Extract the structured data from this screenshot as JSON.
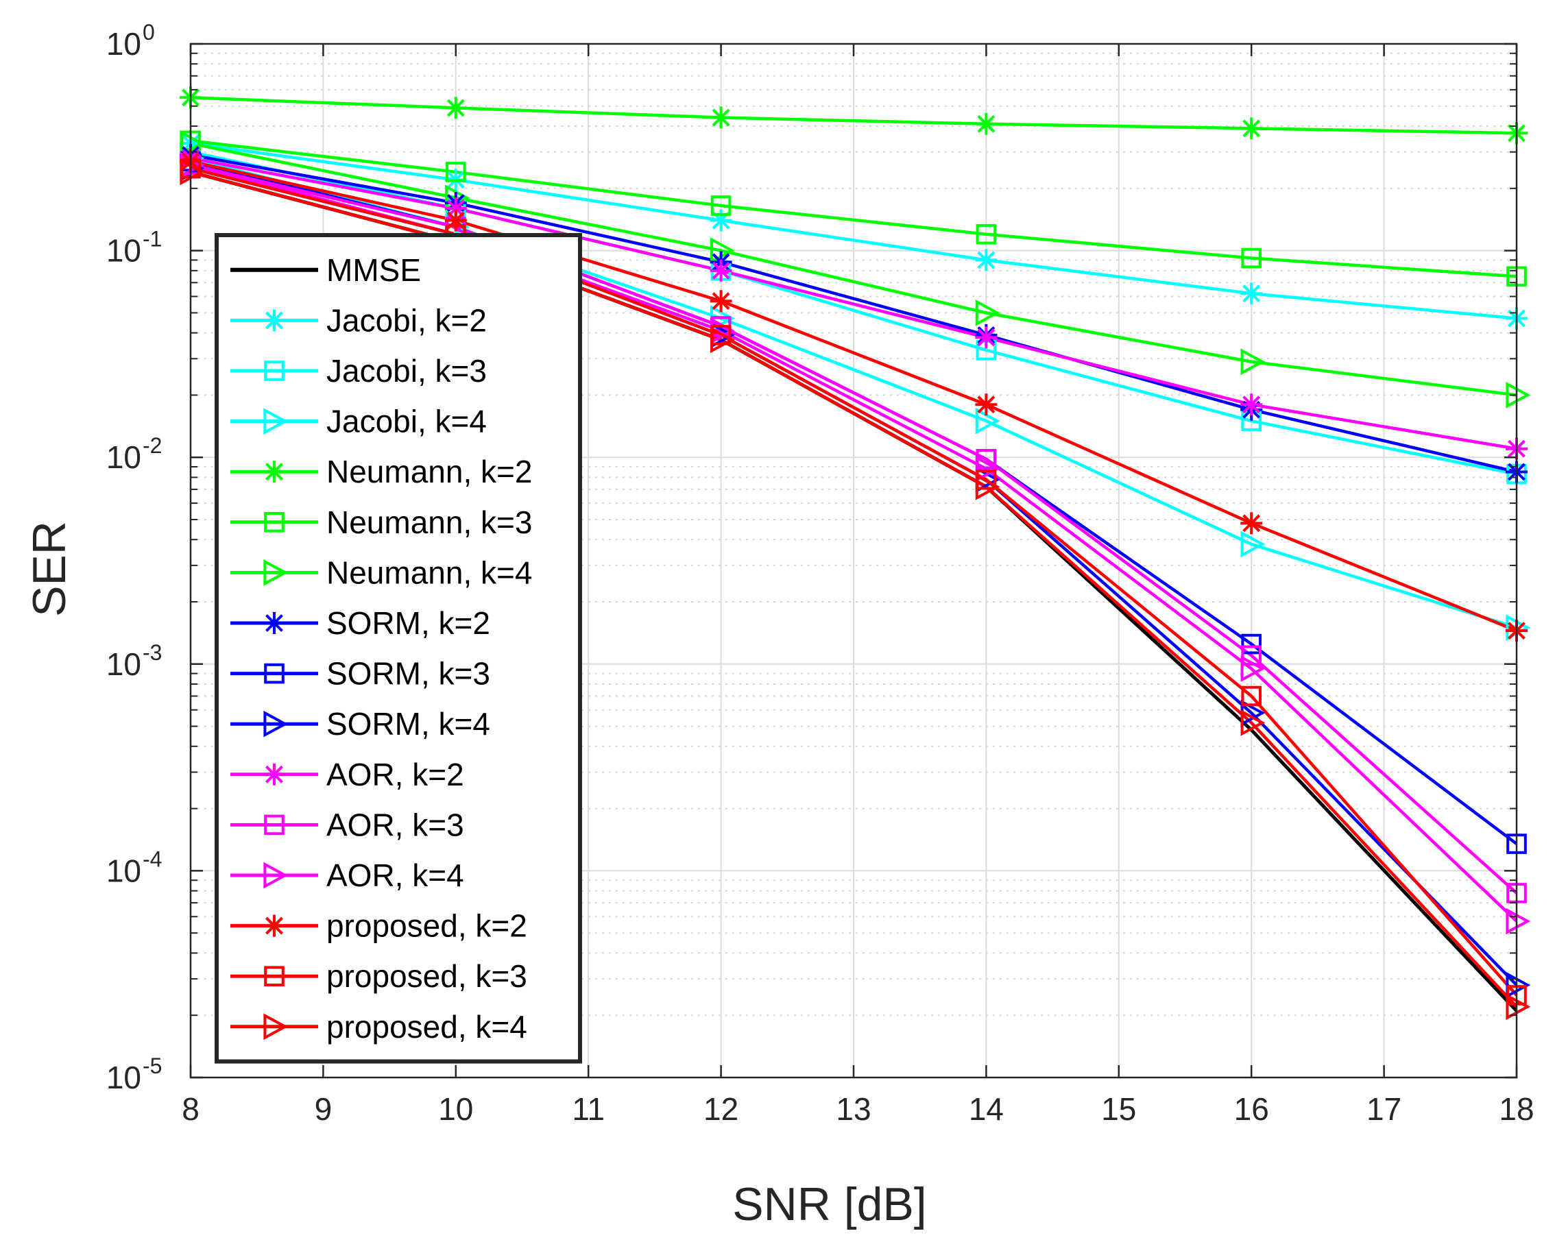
{
  "chart_data": {
    "type": "line",
    "title": "",
    "xlabel": "SNR [dB]",
    "ylabel": "SER",
    "xlim": [
      8,
      18
    ],
    "ylim": [
      1e-05,
      1
    ],
    "yscale": "log",
    "grid": true,
    "legend_position": "left-center",
    "x_ticks": [
      "8",
      "9",
      "10",
      "11",
      "12",
      "13",
      "14",
      "15",
      "16",
      "17",
      "18"
    ],
    "y_ticks": [
      {
        "base": "10",
        "exp": "0",
        "value": 1
      },
      {
        "base": "10",
        "exp": "-1",
        "value": 0.1
      },
      {
        "base": "10",
        "exp": "-2",
        "value": 0.01
      },
      {
        "base": "10",
        "exp": "-3",
        "value": 0.001
      },
      {
        "base": "10",
        "exp": "-4",
        "value": 0.0001
      },
      {
        "base": "10",
        "exp": "-5",
        "value": 1e-05
      }
    ],
    "x": [
      8,
      10,
      12,
      14,
      16,
      18
    ],
    "series": [
      {
        "name": "MMSE",
        "color": "#000000",
        "marker": "none",
        "values": [
          0.24,
          0.11,
          0.037,
          0.0072,
          0.00048,
          2.1e-05
        ]
      },
      {
        "name": "Jacobi, k=2",
        "color": "#00FFFF",
        "marker": "star",
        "values": [
          0.33,
          0.22,
          0.14,
          0.09,
          0.062,
          0.047
        ]
      },
      {
        "name": "Jacobi, k=3",
        "color": "#00FFFF",
        "marker": "square",
        "values": [
          0.3,
          0.16,
          0.08,
          0.033,
          0.015,
          0.0083
        ]
      },
      {
        "name": "Jacobi, k=4",
        "color": "#00FFFF",
        "marker": "triangle-right",
        "values": [
          0.28,
          0.13,
          0.047,
          0.015,
          0.0038,
          0.0015
        ]
      },
      {
        "name": "Neumann, k=2",
        "color": "#00FF00",
        "marker": "star",
        "values": [
          0.55,
          0.49,
          0.44,
          0.41,
          0.39,
          0.37
        ]
      },
      {
        "name": "Neumann, k=3",
        "color": "#00FF00",
        "marker": "square",
        "values": [
          0.34,
          0.24,
          0.165,
          0.12,
          0.092,
          0.075
        ]
      },
      {
        "name": "Neumann, k=4",
        "color": "#00FF00",
        "marker": "triangle-right",
        "values": [
          0.33,
          0.18,
          0.1,
          0.05,
          0.029,
          0.02
        ]
      },
      {
        "name": "SORM, k=2",
        "color": "#0000FF",
        "marker": "star",
        "values": [
          0.29,
          0.17,
          0.088,
          0.039,
          0.017,
          0.0085
        ]
      },
      {
        "name": "SORM, k=3",
        "color": "#0000FF",
        "marker": "square",
        "values": [
          0.27,
          0.13,
          0.043,
          0.0098,
          0.00125,
          0.000135
        ]
      },
      {
        "name": "SORM, k=4",
        "color": "#0000FF",
        "marker": "triangle-right",
        "values": [
          0.25,
          0.12,
          0.039,
          0.0078,
          0.00058,
          2.8e-05
        ]
      },
      {
        "name": "AOR, k=2",
        "color": "#FF00FF",
        "marker": "star",
        "values": [
          0.28,
          0.16,
          0.08,
          0.038,
          0.018,
          0.011
        ]
      },
      {
        "name": "AOR, k=3",
        "color": "#FF00FF",
        "marker": "square",
        "values": [
          0.26,
          0.13,
          0.043,
          0.0098,
          0.0011,
          7.8e-05
        ]
      },
      {
        "name": "AOR, k=4",
        "color": "#FF00FF",
        "marker": "triangle-right",
        "values": [
          0.26,
          0.12,
          0.041,
          0.0088,
          0.00095,
          5.7e-05
        ]
      },
      {
        "name": "proposed, k=2",
        "color": "#FF0000",
        "marker": "star",
        "values": [
          0.27,
          0.14,
          0.057,
          0.018,
          0.0048,
          0.00145
        ]
      },
      {
        "name": "proposed, k=3",
        "color": "#FF0000",
        "marker": "square",
        "values": [
          0.25,
          0.12,
          0.039,
          0.0078,
          0.0007,
          2.5e-05
        ]
      },
      {
        "name": "proposed, k=4",
        "color": "#FF0000",
        "marker": "triangle-right",
        "values": [
          0.24,
          0.11,
          0.037,
          0.0072,
          0.00052,
          2.2e-05
        ]
      }
    ]
  }
}
